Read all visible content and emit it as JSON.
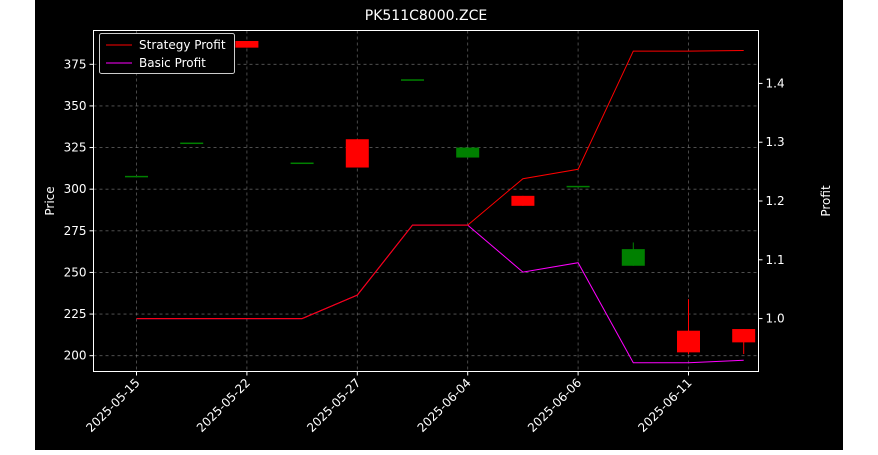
{
  "chart_data": {
    "type": "candlestick_with_profit_lines",
    "title": "PK511C8000.ZCE",
    "ylabel_left": "Price",
    "ylabel_right": "Profit",
    "xlabel": "",
    "grid": true,
    "legend_position": "top-left",
    "x_tick_labels": [
      "2025-05-15",
      "2025-05-22",
      "2025-05-27",
      "2025-06-04",
      "2025-06-06",
      "2025-06-11"
    ],
    "x_tick_positions": [
      0,
      2,
      4,
      6,
      8,
      10
    ],
    "y_left_ticks": [
      200,
      225,
      250,
      275,
      300,
      325,
      350,
      375
    ],
    "y_left_range": [
      190.5,
      395.3
    ],
    "y_right_ticks": [
      1.0,
      1.1,
      1.2,
      1.3,
      1.4
    ],
    "y_right_range": [
      0.91,
      1.49
    ],
    "candles": [
      {
        "x": 0,
        "open": 308,
        "high": 308,
        "low": 308,
        "close": 308
      },
      {
        "x": 1,
        "open": 328,
        "high": 328,
        "low": 328,
        "close": 328
      },
      {
        "x": 2,
        "open": 389,
        "high": 389,
        "low": 385,
        "close": 385
      },
      {
        "x": 3,
        "open": 316,
        "high": 316,
        "low": 316,
        "close": 316
      },
      {
        "x": 4,
        "open": 330,
        "high": 330,
        "low": 313,
        "close": 313
      },
      {
        "x": 5,
        "open": 366,
        "high": 366,
        "low": 366,
        "close": 366
      },
      {
        "x": 6,
        "open": 319,
        "high": 325,
        "low": 319,
        "close": 325
      },
      {
        "x": 7,
        "open": 296,
        "high": 296,
        "low": 290,
        "close": 290
      },
      {
        "x": 8,
        "open": 302,
        "high": 302,
        "low": 302,
        "close": 302
      },
      {
        "x": 9,
        "open": 254,
        "high": 268,
        "low": 254,
        "close": 264
      },
      {
        "x": 10,
        "open": 215,
        "high": 234,
        "low": 201,
        "close": 202
      },
      {
        "x": 11,
        "open": 216,
        "high": 216,
        "low": 201,
        "close": 208
      }
    ],
    "series": [
      {
        "name": "Strategy Profit",
        "color": "#ff0000",
        "x": [
          0,
          1,
          2,
          3,
          4,
          5,
          6,
          7,
          8,
          9,
          10,
          11
        ],
        "values": [
          1.0,
          1.0,
          1.0,
          1.0,
          1.04,
          1.159,
          1.159,
          1.238,
          1.254,
          1.455,
          1.455,
          1.456
        ]
      },
      {
        "name": "Basic Profit",
        "color": "#ff00ff",
        "x": [
          0,
          1,
          2,
          3,
          4,
          5,
          6,
          7,
          8,
          9,
          10,
          11
        ],
        "values": [
          1.0,
          1.0,
          1.0,
          1.0,
          1.04,
          1.159,
          1.159,
          1.079,
          1.095,
          0.925,
          0.925,
          0.929
        ]
      }
    ],
    "colors": {
      "up": "#008000",
      "down": "#ff0000",
      "background": "#000000",
      "page": "#ffffff",
      "grid": "#808080",
      "text": "#ffffff"
    }
  }
}
